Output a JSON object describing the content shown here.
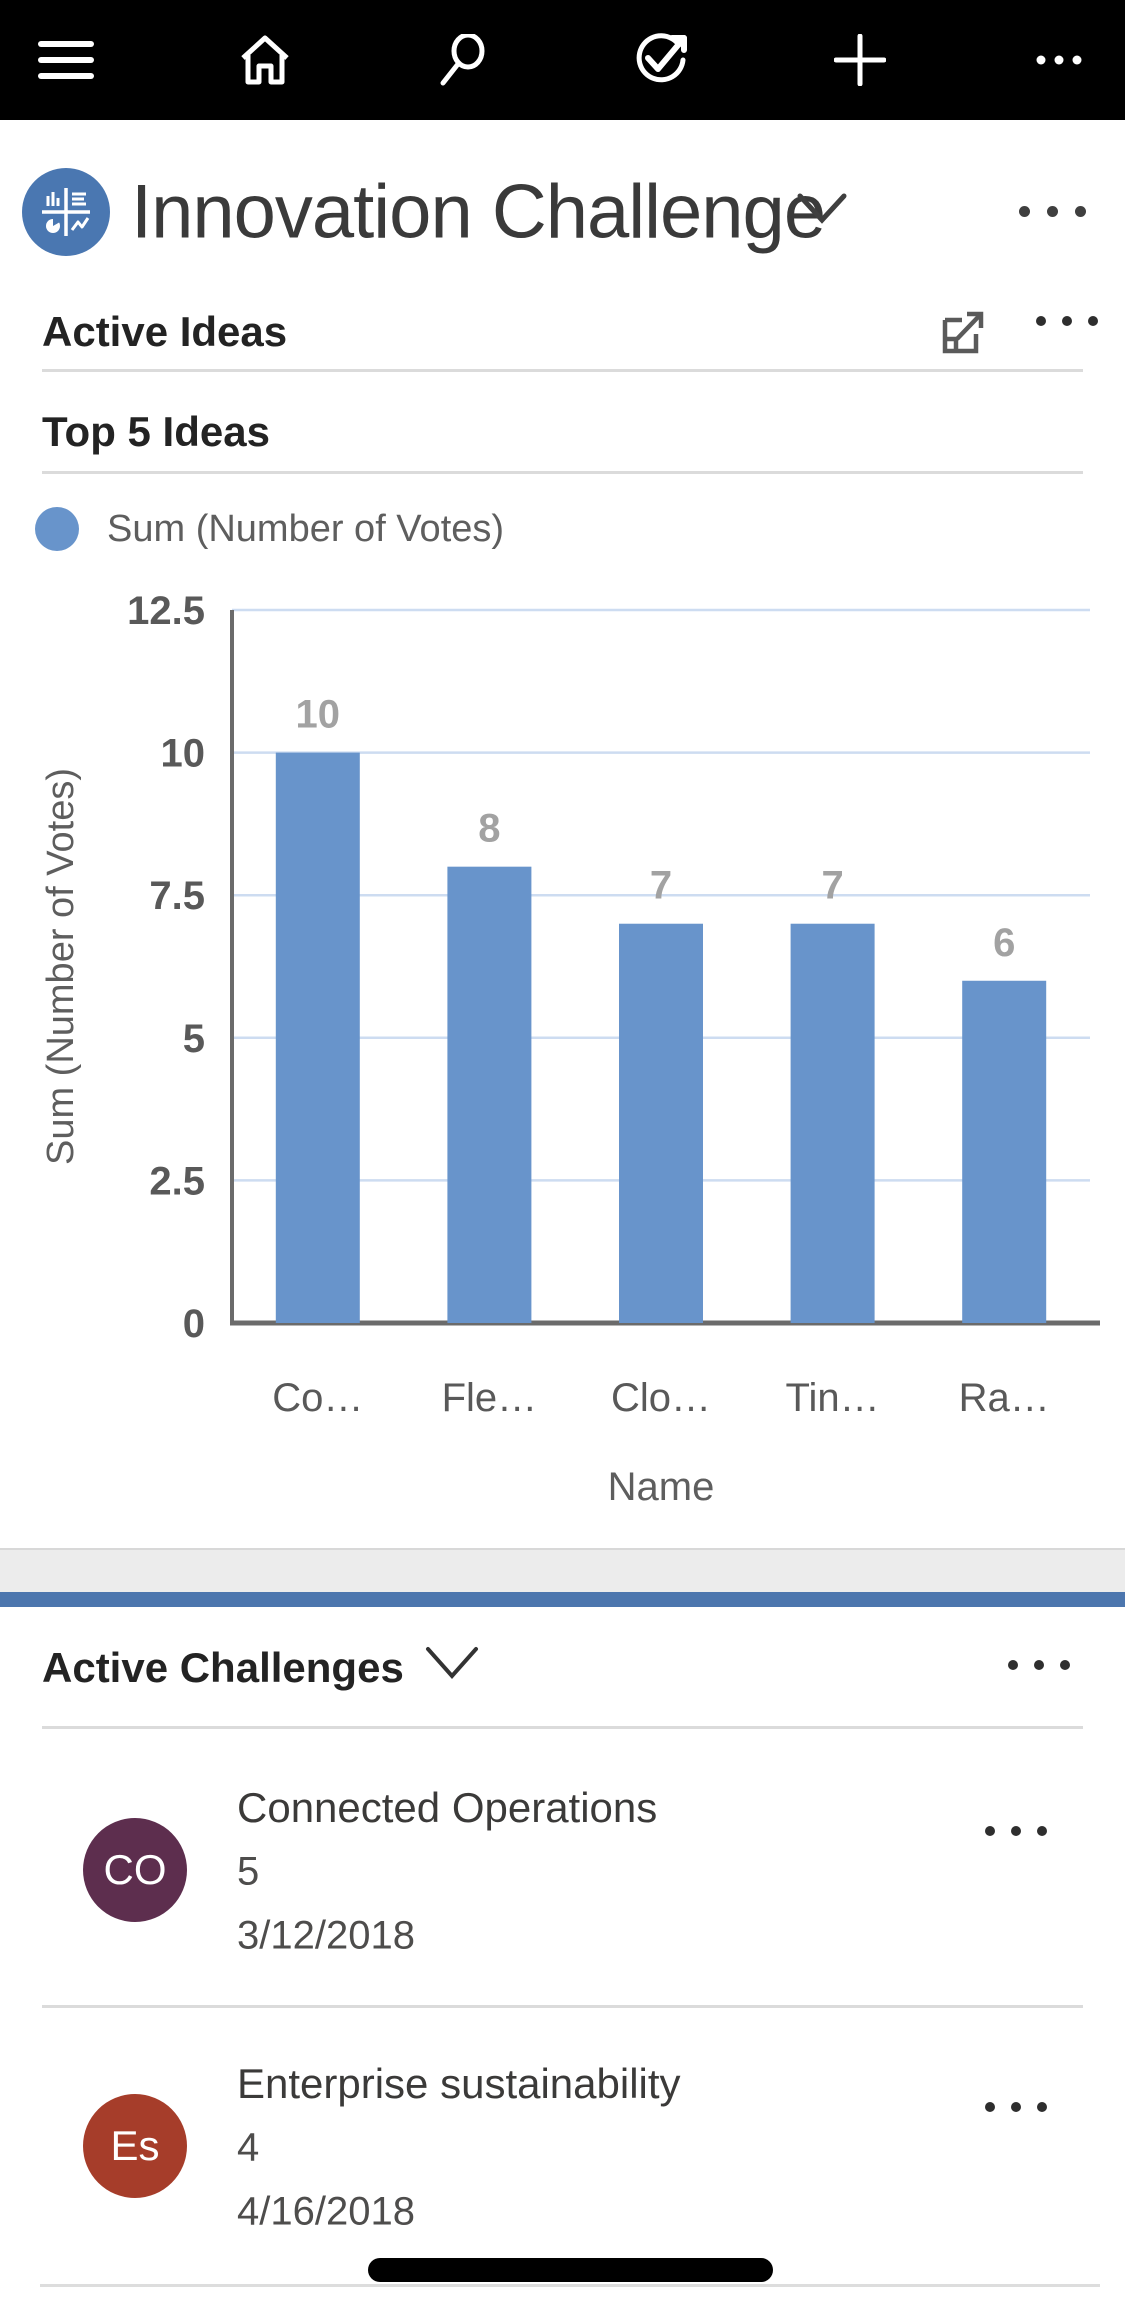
{
  "topbar": {
    "icons": [
      "menu-icon",
      "home-icon",
      "search-icon",
      "sync-check-icon",
      "add-icon",
      "more-icon"
    ]
  },
  "app_header": {
    "title": "Innovation Challenge",
    "icon": "dashboard-charts-icon",
    "icon_color": "#4A77B1"
  },
  "active_ideas": {
    "title": "Active Ideas"
  },
  "chart_card": {
    "title": "Top 5 Ideas",
    "legend_label": "Sum (Number of Votes)"
  },
  "chart_data": {
    "type": "bar",
    "title": "Top 5 Ideas",
    "categories": [
      "Co…",
      "Fle…",
      "Clo…",
      "Tin…",
      "Ra…"
    ],
    "values": [
      10,
      8,
      7,
      7,
      6
    ],
    "data_labels": [
      "10",
      "8",
      "7",
      "7",
      "6"
    ],
    "series_name": "Sum (Number of Votes)",
    "xlabel": "Name",
    "ylabel": "Sum (Number of Votes)",
    "ylim": [
      0,
      12.5
    ],
    "yticks": [
      "0",
      "2.5",
      "5",
      "7.5",
      "10",
      "12.5"
    ],
    "grid": "horizontal gridlines on",
    "legend_position": "top-left",
    "bar_color": "#6894CB",
    "gridline_color": "#CDDCF1",
    "axis_color": "#6B6B6B",
    "tick_color": "#595959",
    "label_color": "#A2A2A2"
  },
  "active_challenges": {
    "title": "Active Challenges",
    "items": [
      {
        "initials": "CO",
        "avatar_color": "#5D2E4E",
        "title": "Connected Operations",
        "value": "5",
        "date": "3/12/2018"
      },
      {
        "initials": "Es",
        "avatar_color": "#A63D2A",
        "title": "Enterprise sustainability",
        "value": "4",
        "date": "4/16/2018"
      }
    ]
  },
  "colors": {
    "topbar_bg": "#000000",
    "accent_blue": "#4C76AE",
    "separator_gray": "#ECECEC"
  }
}
